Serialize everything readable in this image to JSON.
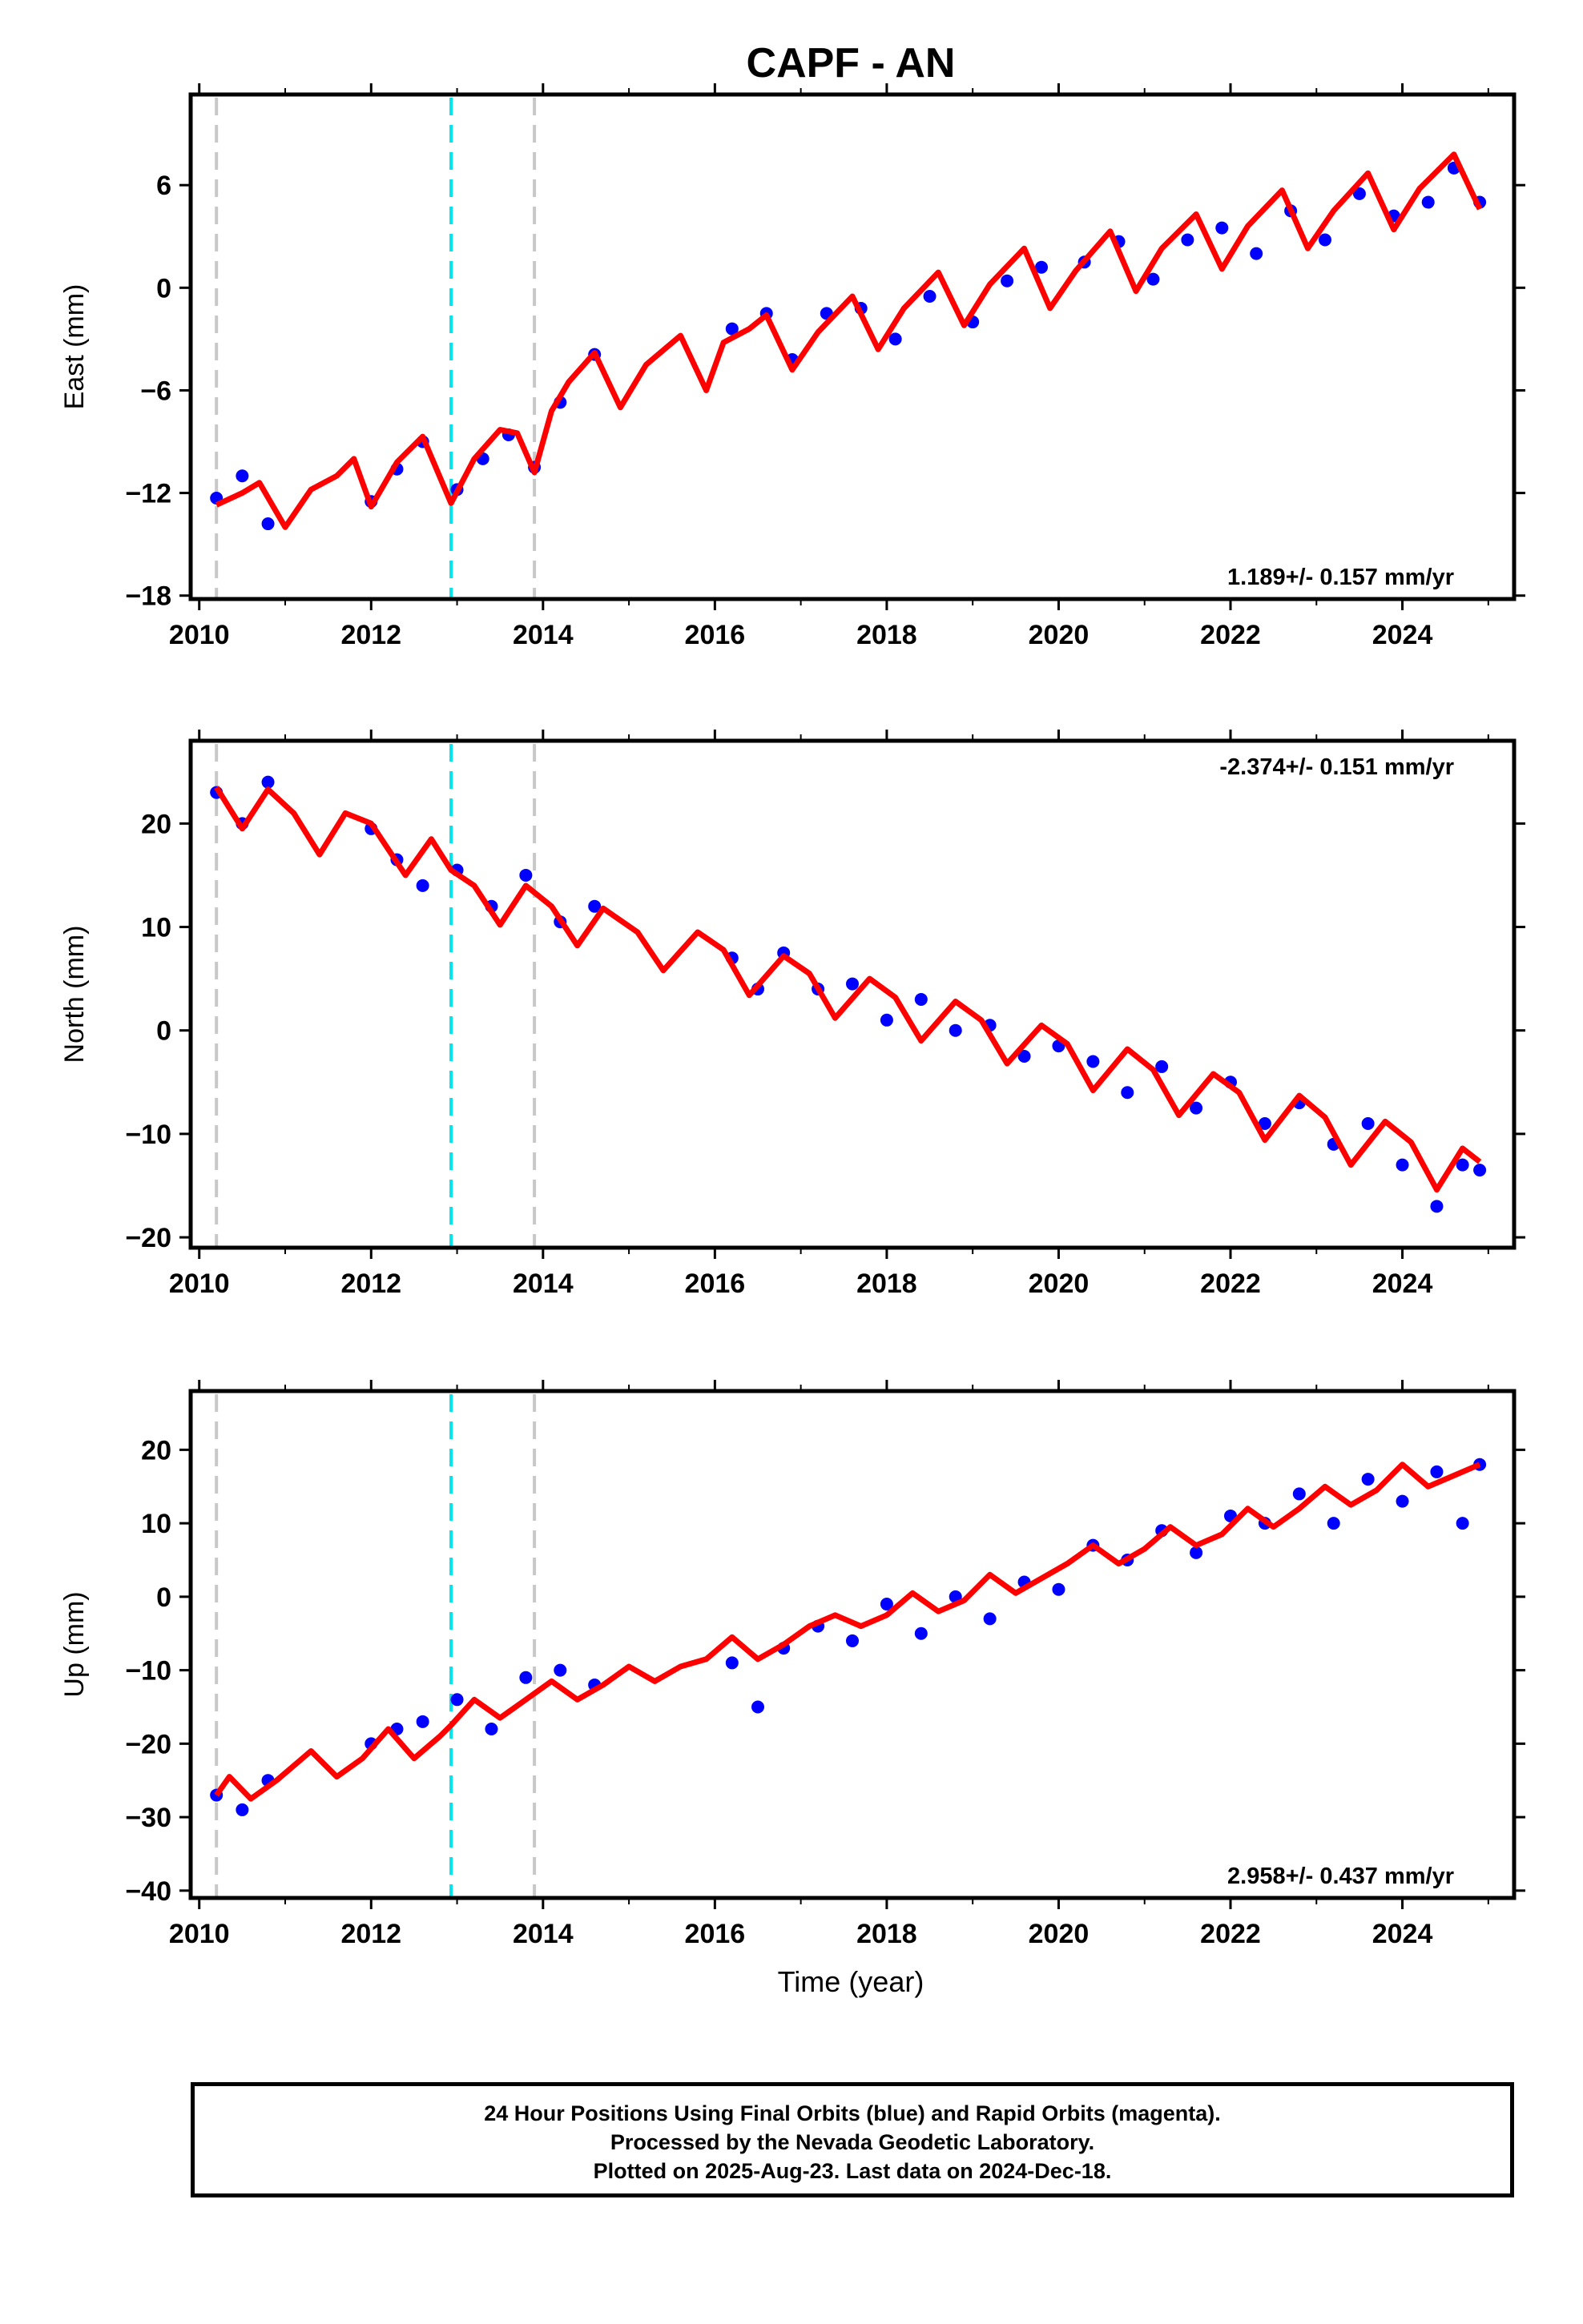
{
  "title": "CAPF - AN",
  "xlabel": "Time (year)",
  "caption": {
    "line1": "24 Hour Positions Using Final Orbits (blue) and Rapid Orbits (magenta).",
    "line2": "Processed by the Nevada Geodetic Laboratory.",
    "line3": "Plotted on 2025-Aug-23. Last data on 2024-Dec-18."
  },
  "colors": {
    "data": "#0000ff",
    "fit": "#ff0000",
    "antenna_change": "#00e5ee",
    "equipment_change": "#c8c8c8",
    "frame": "#000000"
  },
  "x_ticks": [
    "2010",
    "2012",
    "2014",
    "2016",
    "2018",
    "2020",
    "2022",
    "2024"
  ],
  "event_lines": [
    {
      "year": 2010.2,
      "color": "grey"
    },
    {
      "year": 2012.93,
      "color": "cyan"
    },
    {
      "year": 2013.9,
      "color": "grey"
    }
  ],
  "chart_data": [
    {
      "type": "scatter",
      "component": "east",
      "ylabel": "East (mm)",
      "y_ticks": [
        "6",
        "0",
        "−6",
        "−12",
        "−18"
      ],
      "xlim": [
        2009.9,
        2025.3
      ],
      "ylim": [
        -18.2,
        11.3
      ],
      "rate_label": "1.189+/- 0.157 mm/yr",
      "rate_position": "bottom-right",
      "series": [
        {
          "name": "24 Hour Positions (Final Orbits)",
          "style": "points",
          "color": "blue",
          "x": [
            2010.2,
            2010.5,
            2010.8,
            2012.0,
            2012.3,
            2012.6,
            2013.0,
            2013.3,
            2013.6,
            2013.9,
            2014.2,
            2014.6,
            2016.2,
            2016.6,
            2016.9,
            2017.3,
            2017.7,
            2018.1,
            2018.5,
            2019.0,
            2019.4,
            2019.8,
            2020.3,
            2020.7,
            2021.1,
            2021.5,
            2021.9,
            2022.3,
            2022.7,
            2023.1,
            2023.5,
            2023.9,
            2024.3,
            2024.6,
            2024.9
          ],
          "y": [
            -12.3,
            -11.0,
            -13.8,
            -12.5,
            -10.6,
            -9.0,
            -11.8,
            -10.0,
            -8.6,
            -10.5,
            -6.7,
            -3.9,
            -2.4,
            -1.5,
            -4.2,
            -1.5,
            -1.2,
            -3.0,
            -0.5,
            -2.0,
            0.4,
            1.2,
            1.5,
            2.7,
            0.5,
            2.8,
            3.5,
            2.0,
            4.5,
            2.8,
            5.5,
            4.2,
            5.0,
            7.0,
            5.0
          ]
        },
        {
          "name": "Model fit",
          "style": "line",
          "color": "red",
          "x": [
            2010.2,
            2010.5,
            2010.7,
            2011.0,
            2011.3,
            2011.6,
            2011.8,
            2012.0,
            2012.3,
            2012.6,
            2012.93,
            2013.2,
            2013.5,
            2013.7,
            2013.9,
            2014.1,
            2014.3,
            2014.6,
            2014.9,
            2015.2,
            2015.6,
            2015.9,
            2016.1,
            2016.4,
            2016.6,
            2016.9,
            2017.2,
            2017.6,
            2017.9,
            2018.2,
            2018.6,
            2018.9,
            2019.2,
            2019.6,
            2019.9,
            2020.2,
            2020.6,
            2020.9,
            2021.2,
            2021.6,
            2021.9,
            2022.2,
            2022.6,
            2022.9,
            2023.2,
            2023.6,
            2023.9,
            2024.2,
            2024.6,
            2024.9
          ],
          "y": [
            -12.7,
            -12.0,
            -11.4,
            -14.0,
            -11.8,
            -11.0,
            -10.0,
            -12.8,
            -10.2,
            -8.7,
            -12.6,
            -10.0,
            -8.3,
            -8.5,
            -10.8,
            -7.2,
            -5.5,
            -3.8,
            -7.0,
            -4.5,
            -2.8,
            -6.0,
            -3.2,
            -2.4,
            -1.6,
            -4.8,
            -2.6,
            -0.5,
            -3.6,
            -1.2,
            0.9,
            -2.2,
            0.2,
            2.3,
            -1.2,
            1.0,
            3.3,
            -0.2,
            2.3,
            4.3,
            1.1,
            3.6,
            5.7,
            2.3,
            4.5,
            6.7,
            3.4,
            5.8,
            7.8,
            4.6
          ]
        }
      ]
    },
    {
      "type": "scatter",
      "component": "north",
      "ylabel": "North (mm)",
      "y_ticks": [
        "20",
        "10",
        "0",
        "−10",
        "−20"
      ],
      "xlim": [
        2009.9,
        2025.3
      ],
      "ylim": [
        -21.0,
        28.0
      ],
      "rate_label": "-2.374+/- 0.151 mm/yr",
      "rate_position": "top-right",
      "series": [
        {
          "name": "24 Hour Positions (Final Orbits)",
          "style": "points",
          "color": "blue",
          "x": [
            2010.2,
            2010.5,
            2010.8,
            2012.0,
            2012.3,
            2012.6,
            2013.0,
            2013.4,
            2013.8,
            2014.2,
            2014.6,
            2016.2,
            2016.5,
            2016.8,
            2017.2,
            2017.6,
            2018.0,
            2018.4,
            2018.8,
            2019.2,
            2019.6,
            2020.0,
            2020.4,
            2020.8,
            2021.2,
            2021.6,
            2022.0,
            2022.4,
            2022.8,
            2023.2,
            2023.6,
            2024.0,
            2024.4,
            2024.7,
            2024.9
          ],
          "y": [
            23.0,
            20.0,
            24.0,
            19.5,
            16.5,
            14.0,
            15.5,
            12.0,
            15.0,
            10.5,
            12.0,
            7.0,
            4.0,
            7.5,
            4.0,
            4.5,
            1.0,
            3.0,
            0.0,
            0.5,
            -2.5,
            -1.5,
            -3.0,
            -6.0,
            -3.5,
            -7.5,
            -5.0,
            -9.0,
            -7.0,
            -11.0,
            -9.0,
            -13.0,
            -17.0,
            -13.0,
            -13.5
          ]
        },
        {
          "name": "Model fit",
          "style": "line",
          "color": "red",
          "x": [
            2010.2,
            2010.5,
            2010.8,
            2011.1,
            2011.4,
            2011.7,
            2012.0,
            2012.4,
            2012.7,
            2012.93,
            2013.2,
            2013.5,
            2013.8,
            2014.1,
            2014.4,
            2014.7,
            2015.1,
            2015.4,
            2015.8,
            2016.1,
            2016.4,
            2016.8,
            2017.1,
            2017.4,
            2017.8,
            2018.1,
            2018.4,
            2018.8,
            2019.1,
            2019.4,
            2019.8,
            2020.1,
            2020.4,
            2020.8,
            2021.1,
            2021.4,
            2021.8,
            2022.1,
            2022.4,
            2022.8,
            2023.1,
            2023.4,
            2023.8,
            2024.1,
            2024.4,
            2024.7,
            2024.9
          ],
          "y": [
            23.5,
            19.5,
            23.3,
            21.0,
            17.0,
            21.0,
            20.0,
            15.0,
            18.5,
            15.5,
            14.0,
            10.2,
            14.0,
            12.0,
            8.2,
            11.8,
            9.5,
            5.8,
            9.5,
            7.8,
            3.4,
            7.2,
            5.5,
            1.2,
            5.0,
            3.2,
            -1.0,
            2.8,
            1.0,
            -3.2,
            0.5,
            -1.3,
            -5.8,
            -1.8,
            -3.8,
            -8.2,
            -4.2,
            -6.0,
            -10.6,
            -6.3,
            -8.4,
            -13.0,
            -8.8,
            -10.8,
            -15.4,
            -11.4,
            -12.7
          ]
        }
      ]
    },
    {
      "type": "scatter",
      "component": "up",
      "ylabel": "Up (mm)",
      "y_ticks": [
        "20",
        "10",
        "0",
        "−10",
        "−20",
        "−30",
        "−40"
      ],
      "xlim": [
        2009.9,
        2025.3
      ],
      "ylim": [
        -41.0,
        28.0
      ],
      "rate_label": "2.958+/- 0.437 mm/yr",
      "rate_position": "bottom-right",
      "series": [
        {
          "name": "24 Hour Positions (Final Orbits)",
          "style": "points",
          "color": "blue",
          "x": [
            2010.2,
            2010.5,
            2010.8,
            2012.0,
            2012.3,
            2012.6,
            2013.0,
            2013.4,
            2013.8,
            2014.2,
            2014.6,
            2016.2,
            2016.5,
            2016.8,
            2017.2,
            2017.6,
            2018.0,
            2018.4,
            2018.8,
            2019.2,
            2019.6,
            2020.0,
            2020.4,
            2020.8,
            2021.2,
            2021.6,
            2022.0,
            2022.4,
            2022.8,
            2023.2,
            2023.6,
            2024.0,
            2024.4,
            2024.7,
            2024.9
          ],
          "y": [
            -27.0,
            -29.0,
            -25.0,
            -20.0,
            -18.0,
            -17.0,
            -14.0,
            -18.0,
            -11.0,
            -10.0,
            -12.0,
            -9.0,
            -15.0,
            -7.0,
            -4.0,
            -6.0,
            -1.0,
            -5.0,
            0.0,
            -3.0,
            2.0,
            1.0,
            7.0,
            5.0,
            9.0,
            6.0,
            11.0,
            10.0,
            14.0,
            10.0,
            16.0,
            13.0,
            17.0,
            10.0,
            18.0
          ]
        },
        {
          "name": "Model fit",
          "style": "line",
          "color": "red",
          "x": [
            2010.2,
            2010.35,
            2010.6,
            2010.9,
            2011.3,
            2011.6,
            2011.9,
            2012.2,
            2012.5,
            2012.8,
            2012.93,
            2013.2,
            2013.5,
            2013.8,
            2014.1,
            2014.4,
            2014.7,
            2015.0,
            2015.3,
            2015.6,
            2015.9,
            2016.2,
            2016.5,
            2016.8,
            2017.1,
            2017.4,
            2017.7,
            2018.0,
            2018.3,
            2018.6,
            2018.9,
            2019.2,
            2019.5,
            2019.8,
            2020.1,
            2020.4,
            2020.7,
            2021.0,
            2021.3,
            2021.6,
            2021.9,
            2022.2,
            2022.5,
            2022.8,
            2023.1,
            2023.4,
            2023.7,
            2024.0,
            2024.3,
            2024.6,
            2024.9
          ],
          "y": [
            -27.0,
            -24.5,
            -27.5,
            -25.0,
            -21.0,
            -24.5,
            -22.0,
            -18.0,
            -22.0,
            -19.0,
            -17.5,
            -14.0,
            -16.5,
            -14.0,
            -11.5,
            -14.0,
            -12.0,
            -9.5,
            -11.5,
            -9.5,
            -8.5,
            -5.5,
            -8.5,
            -6.5,
            -4.0,
            -2.5,
            -4.0,
            -2.5,
            0.5,
            -2.0,
            -0.5,
            3.0,
            0.5,
            2.5,
            4.5,
            7.0,
            4.5,
            6.5,
            9.5,
            7.0,
            8.5,
            12.0,
            9.5,
            12.0,
            15.0,
            12.5,
            14.5,
            18.0,
            15.0,
            16.5,
            18.0
          ]
        }
      ]
    }
  ]
}
